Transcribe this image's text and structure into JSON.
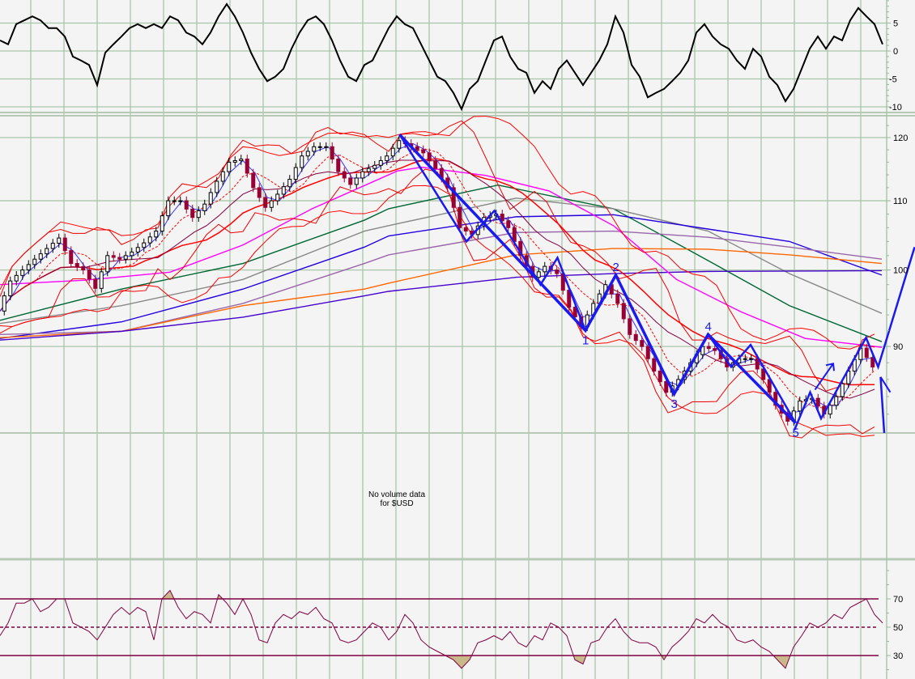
{
  "chart_data": [
    {
      "panel": "oscillator",
      "type": "line",
      "ylim": [
        -11,
        9.2
      ],
      "ticks": [
        "5",
        "0",
        "-5",
        "-10"
      ],
      "tick_values": [
        5,
        0,
        -5,
        -10
      ],
      "color": "#000000",
      "values": [
        1.9,
        1.2,
        4.8,
        5.5,
        6.2,
        5.5,
        4.1,
        4.1,
        2.6,
        -1.0,
        -1.7,
        -2.5,
        -6.1,
        -0.3,
        1.2,
        2.6,
        4.1,
        4.8,
        4.1,
        4.8,
        4.1,
        6.2,
        5.5,
        3.3,
        2.6,
        1.2,
        3.3,
        6.2,
        8.4,
        6.2,
        3.3,
        -0.3,
        -3.2,
        -5.4,
        -4.6,
        -3.2,
        0.4,
        3.3,
        5.5,
        6.2,
        4.8,
        1.9,
        -1.7,
        -4.6,
        -5.4,
        -2.5,
        -1.7,
        1.2,
        4.1,
        6.2,
        4.8,
        4.1,
        1.2,
        -1.7,
        -4.6,
        -5.4,
        -7.5,
        -10.4,
        -6.8,
        -5.4,
        -1.7,
        1.9,
        2.6,
        -1.0,
        -3.2,
        -3.9,
        -7.5,
        -5.4,
        -6.8,
        -3.2,
        -1.7,
        -3.9,
        -6.1,
        -3.9,
        -1.7,
        1.2,
        6.2,
        3.3,
        -2.5,
        -4.6,
        -8.3,
        -7.5,
        -6.8,
        -5.4,
        -3.9,
        -1.7,
        3.3,
        4.8,
        2.6,
        1.2,
        0.4,
        -1.7,
        -3.2,
        0.4,
        -1.0,
        -4.6,
        -6.1,
        -9.0,
        -6.8,
        -3.2,
        0.4,
        2.6,
        0.4,
        2.6,
        1.9,
        5.5,
        7.7,
        6.2,
        4.8,
        1.2
      ]
    },
    {
      "panel": "price",
      "type": "candlestick",
      "scale": "log",
      "ylim": [
        80,
        123.4
      ],
      "ticks": [
        "120",
        "110",
        "100",
        "90"
      ],
      "tick_values": [
        120,
        110,
        100,
        90
      ],
      "up_color": "#ffffff",
      "down_color": "#990033",
      "close": [
        94.5,
        98.5,
        100,
        101.5,
        103,
        104.5,
        100.9,
        100,
        97.5,
        102,
        101.5,
        102.5,
        103.8,
        105.5,
        110,
        110,
        107.5,
        109.5,
        113,
        116,
        116.5,
        112,
        109,
        111,
        113.3,
        117,
        118.5,
        118.5,
        114.5,
        112.5,
        114.5,
        115.5,
        117,
        119.5,
        118.5,
        117.5,
        115,
        112,
        106,
        105,
        107.5,
        108,
        106,
        102,
        99,
        100.5,
        99.5,
        95,
        92.5,
        95.5,
        98,
        95.5,
        91.5,
        90,
        87,
        84.5,
        86,
        88,
        90,
        89.5,
        87.5,
        88.5,
        88.5,
        86,
        83,
        81.2,
        83.5,
        83.8,
        82,
        84,
        87,
        89.8,
        87.5
      ],
      "moving_averages": [
        {
          "color": "#006633",
          "points": [
            [
              0,
              93.3
            ],
            [
              10,
              97.4
            ],
            [
              20,
              100.9
            ],
            [
              30,
              107.1
            ],
            [
              32,
              108.8
            ],
            [
              41,
              112.4
            ],
            [
              50.5,
              108.8
            ],
            [
              58.3,
              101.3
            ],
            [
              65,
              95.2
            ],
            [
              72.6,
              90.6
            ]
          ]
        },
        {
          "color": "#888888",
          "points": [
            [
              0,
              92.9
            ],
            [
              10,
              95.2
            ],
            [
              20,
              98.7
            ],
            [
              30,
              105.5
            ],
            [
              32,
              106.3
            ],
            [
              42.5,
              110.4
            ],
            [
              50.5,
              108.8
            ],
            [
              58.3,
              105.5
            ],
            [
              65,
              99.5
            ],
            [
              72.6,
              94.2
            ]
          ]
        },
        {
          "color": "#2200dd",
          "points": [
            [
              0,
              91.0
            ],
            [
              10,
              93.1
            ],
            [
              20,
              97.4
            ],
            [
              30,
              103.2
            ],
            [
              32,
              104.8
            ],
            [
              42.5,
              107.6
            ],
            [
              50.5,
              107.9
            ],
            [
              58.3,
              105.8
            ],
            [
              65,
              104.0
            ],
            [
              72.6,
              99.3
            ]
          ]
        },
        {
          "color": "#9966aa",
          "points": [
            [
              0,
              91.5
            ],
            [
              10,
              91.9
            ],
            [
              20,
              95.5
            ],
            [
              30,
              100.9
            ],
            [
              32,
              102.1
            ],
            [
              42.5,
              105.3
            ],
            [
              50.5,
              105.5
            ],
            [
              58.3,
              104.6
            ],
            [
              65,
              103.2
            ],
            [
              72.6,
              101.5
            ]
          ]
        },
        {
          "color": "#ff6600",
          "points": [
            [
              0,
              91.1
            ],
            [
              10,
              91.9
            ],
            [
              20,
              95.2
            ],
            [
              30,
              97.4
            ],
            [
              32,
              98.2
            ],
            [
              42.5,
              102.1
            ],
            [
              50.5,
              103.0
            ],
            [
              58.3,
              102.9
            ],
            [
              65,
              102.1
            ],
            [
              72.6,
              100.9
            ]
          ]
        },
        {
          "color": "#4400cc",
          "points": [
            [
              0,
              90.8
            ],
            [
              10,
              91.9
            ],
            [
              20,
              93.7
            ],
            [
              30,
              96.5
            ],
            [
              32,
              97.1
            ],
            [
              42.5,
              99.0
            ],
            [
              50.5,
              99.5
            ],
            [
              58.3,
              99.8
            ],
            [
              72.6,
              99.9
            ]
          ]
        },
        {
          "color": "#ff00ff",
          "points": [
            [
              0,
              98.0
            ],
            [
              7,
              98.6
            ],
            [
              14,
              99.7
            ],
            [
              20,
              103.5
            ],
            [
              25.7,
              108.8
            ],
            [
              32.7,
              114.6
            ],
            [
              34.7,
              115.2
            ],
            [
              40,
              113.9
            ],
            [
              45.2,
              111.5
            ],
            [
              50.5,
              106.3
            ],
            [
              55.7,
              98.7
            ],
            [
              61,
              94.4
            ],
            [
              66.3,
              91.0
            ],
            [
              72.6,
              89.9
            ]
          ]
        }
      ],
      "annotation_color": "#1a1aee",
      "annotations": {
        "main_wave": [
          [
            32.9,
            120.5
          ],
          [
            48.2,
            92
          ],
          [
            50.7,
            99.3
          ],
          [
            55.5,
            84.3
          ],
          [
            58.3,
            91.5
          ],
          [
            65.5,
            81
          ]
        ],
        "sub_wave_a": [
          [
            32.9,
            120.5
          ],
          [
            38.4,
            104
          ],
          [
            40.7,
            108.5
          ],
          [
            44.5,
            98
          ],
          [
            45.9,
            101.7
          ],
          [
            48.2,
            92
          ]
        ],
        "sub_wave_b": [
          [
            58.3,
            91.5
          ],
          [
            60.2,
            87.5
          ],
          [
            61.8,
            90.2
          ],
          [
            65.5,
            81
          ]
        ],
        "tail": [
          [
            65.4,
            80.2
          ],
          [
            66.7,
            84.5
          ],
          [
            67.6,
            81.5
          ],
          [
            71.3,
            91.1
          ],
          [
            72.3,
            87.5
          ],
          [
            75.3,
            103.2
          ]
        ],
        "arrow_up": [
          [
            67.1,
            84.8
          ],
          [
            68.6,
            87.9
          ]
        ],
        "drop_line": [
          [
            72.5,
            86.3
          ],
          [
            72.8,
            79.9
          ]
        ],
        "drop_line_b": [
          [
            72.5,
            86.3
          ],
          [
            73.3,
            84.5
          ]
        ]
      },
      "wave_labels": [
        {
          "text": "1",
          "at": [
            48.2,
            92
          ],
          "pos": "below"
        },
        {
          "text": "2",
          "at": [
            50.7,
            99.3
          ],
          "pos": "above"
        },
        {
          "text": "3",
          "at": [
            55.5,
            84.3
          ],
          "pos": "below"
        },
        {
          "text": "4",
          "at": [
            58.3,
            91.5
          ],
          "pos": "above"
        },
        {
          "text": "5",
          "at": [
            65.5,
            81
          ],
          "pos": "below"
        }
      ]
    },
    {
      "panel": "volume",
      "type": "text",
      "message_line1": "No volume data",
      "message_line2": "for $USD"
    },
    {
      "panel": "rsi",
      "type": "line",
      "ylim": [
        11,
        94
      ],
      "ticks": [
        "70",
        "50",
        "30"
      ],
      "tick_values": [
        70,
        50,
        30
      ],
      "color": "#800040",
      "fill_color": "#c8b88a",
      "values": [
        44,
        53,
        67,
        67,
        70,
        61,
        64,
        70,
        70,
        53,
        50,
        47,
        41,
        50,
        59,
        64,
        59,
        64,
        61,
        41,
        70,
        76,
        64,
        56,
        61,
        59,
        53,
        73,
        67,
        59,
        70,
        59,
        41,
        39,
        53,
        59,
        56,
        61,
        59,
        64,
        56,
        53,
        41,
        39,
        41,
        47,
        53,
        50,
        41,
        47,
        59,
        53,
        41,
        36,
        33,
        30,
        27,
        21,
        27,
        39,
        41,
        44,
        41,
        47,
        39,
        36,
        44,
        41,
        53,
        50,
        44,
        27,
        24,
        39,
        41,
        50,
        56,
        47,
        41,
        39,
        39,
        36,
        27,
        36,
        41,
        47,
        56,
        53,
        59,
        53,
        50,
        41,
        39,
        41,
        36,
        33,
        27,
        21,
        36,
        44,
        53,
        50,
        53,
        59,
        56,
        64,
        67,
        70,
        59,
        53
      ]
    }
  ]
}
